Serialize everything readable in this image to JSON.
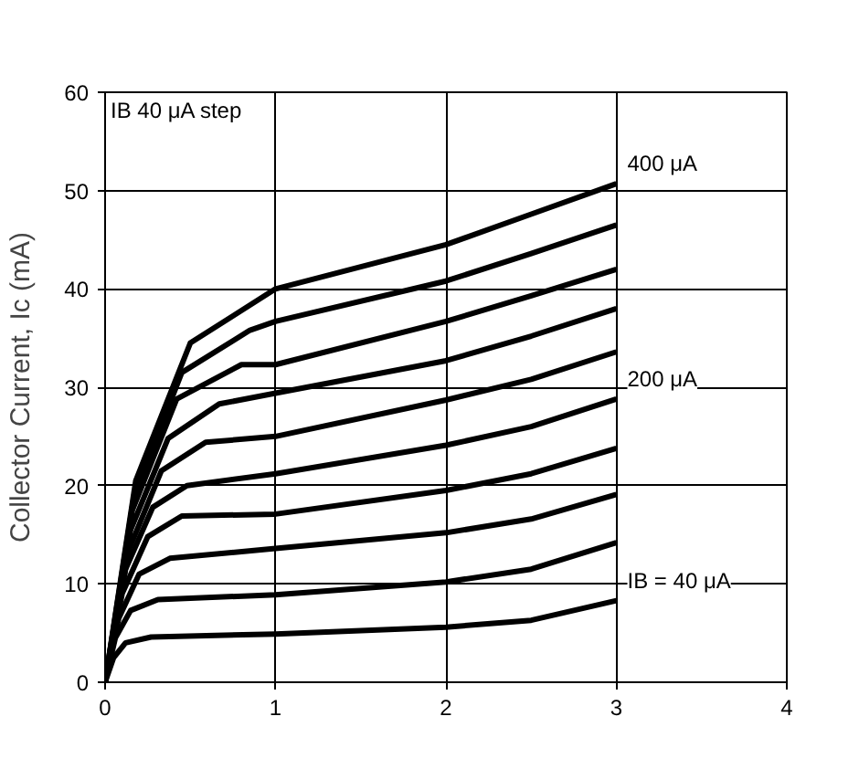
{
  "chart_data": {
    "type": "line",
    "ylabel": "Collector Current, Ic (mA)",
    "xlim": [
      0,
      4
    ],
    "ylim": [
      0,
      60
    ],
    "xticks": [
      0,
      1,
      2,
      3,
      4
    ],
    "yticks": [
      0,
      10,
      20,
      30,
      40,
      50,
      60
    ],
    "grid": true,
    "marker": "none",
    "line_style": "solid",
    "annotations": [
      "IB 40 μA step"
    ],
    "series": [
      {
        "name": "IB = 40 μA",
        "color": "#000000",
        "x": [
          0,
          0.05,
          0.12,
          0.27,
          1,
          2,
          2.5,
          3
        ],
        "values": [
          0,
          2.5,
          4.0,
          4.6,
          4.9,
          5.6,
          6.3,
          8.3
        ]
      },
      {
        "color": "#000000",
        "x": [
          0,
          0.06,
          0.15,
          0.31,
          1,
          2,
          2.5,
          3
        ],
        "values": [
          0,
          4.5,
          7.3,
          8.4,
          8.9,
          10.2,
          11.5,
          14.2
        ]
      },
      {
        "color": "#000000",
        "x": [
          0,
          0.08,
          0.2,
          0.38,
          1,
          2,
          2.5,
          3
        ],
        "values": [
          0,
          6.5,
          11.0,
          12.6,
          13.6,
          15.2,
          16.6,
          19.1
        ]
      },
      {
        "color": "#000000",
        "x": [
          0,
          0.1,
          0.25,
          0.45,
          1,
          2,
          2.5,
          3
        ],
        "values": [
          0,
          9.0,
          14.8,
          16.9,
          17.1,
          19.5,
          21.2,
          23.8
        ]
      },
      {
        "name": "200 μA",
        "color": "#000000",
        "x": [
          0,
          0.12,
          0.28,
          0.48,
          1,
          2,
          2.5,
          3
        ],
        "values": [
          0,
          11.5,
          17.8,
          20.0,
          21.2,
          24.1,
          26.0,
          28.8
        ]
      },
      {
        "color": "#000000",
        "x": [
          0,
          0.14,
          0.33,
          0.59,
          1,
          2,
          2.5,
          3
        ],
        "values": [
          0,
          13.5,
          21.5,
          24.4,
          25.0,
          28.7,
          30.8,
          33.6
        ]
      },
      {
        "color": "#000000",
        "x": [
          0,
          0.15,
          0.37,
          0.67,
          1,
          2,
          2.5,
          3
        ],
        "values": [
          0,
          15.5,
          24.8,
          28.3,
          29.4,
          32.7,
          35.2,
          38.0
        ]
      },
      {
        "color": "#000000",
        "x": [
          0,
          0.16,
          0.42,
          0.8,
          1,
          2,
          2.5,
          3
        ],
        "values": [
          0,
          17.5,
          28.8,
          32.3,
          32.3,
          36.7,
          39.3,
          42.0
        ]
      },
      {
        "color": "#000000",
        "x": [
          0,
          0.17,
          0.45,
          0.85,
          1,
          2,
          2.5,
          3
        ],
        "values": [
          0,
          19.0,
          31.5,
          35.8,
          36.7,
          40.8,
          43.6,
          46.5
        ]
      },
      {
        "name": "400 μA",
        "color": "#000000",
        "x": [
          0,
          0.18,
          0.5,
          1,
          2,
          2.5,
          3
        ],
        "values": [
          0,
          20.5,
          34.5,
          40.0,
          44.5,
          47.6,
          50.7
        ]
      }
    ]
  }
}
